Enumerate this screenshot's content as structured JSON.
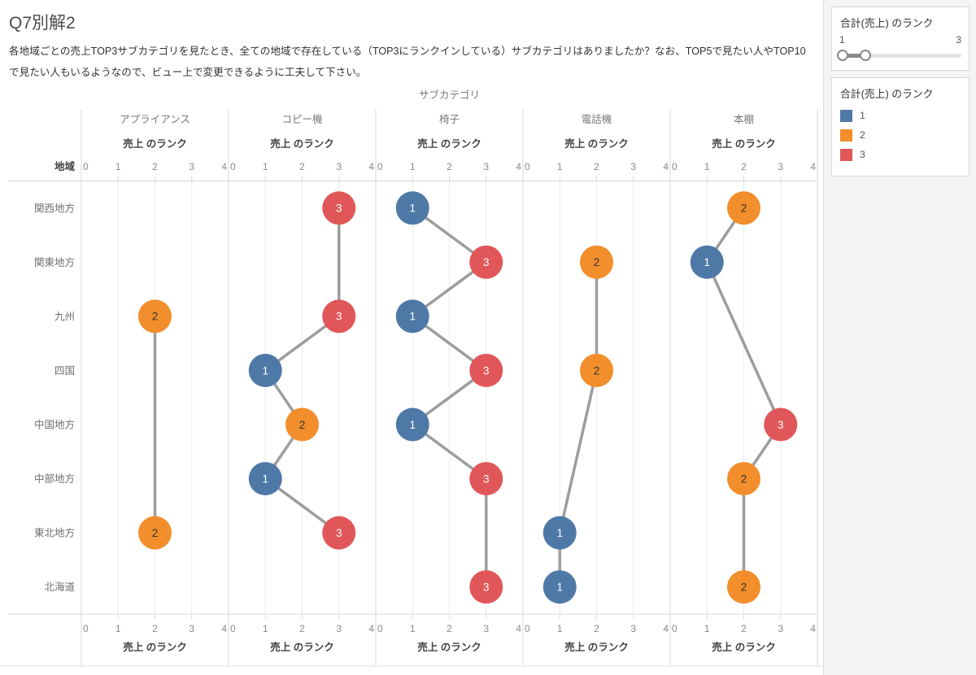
{
  "page": {
    "title": "Q7別解2",
    "description": "各地域ごとの売上TOP3サブカテゴリを見たとき、全ての地域で存在している（TOP3にランクインしている）サブカテゴリはありましたか？なお、TOP5で見たい人やTOP10で見たい人もいるようなので、ビュー上で変更できるように工夫して下さい。"
  },
  "chart_data": {
    "type": "scatter",
    "columns_field": "サブカテゴリ",
    "rows_field": "地域",
    "axis_label": "売上 のランク",
    "axis_ticks": [
      "0",
      "1",
      "2",
      "3",
      "4"
    ],
    "axis_range": [
      0,
      4
    ],
    "grid": "vertical-light",
    "legend_position": "right",
    "columns": [
      "アプライアンス",
      "コピー機",
      "椅子",
      "電話機",
      "本棚"
    ],
    "rows": [
      "関西地方",
      "関東地方",
      "九州",
      "四国",
      "中国地方",
      "中部地方",
      "東北地方",
      "北海道"
    ],
    "rank_styles": {
      "1": {
        "fill": "#4e79a7",
        "text": "#ffffff"
      },
      "2": {
        "fill": "#f28e2b",
        "text": "#333333"
      },
      "3": {
        "fill": "#e15759",
        "text": "#ffffff"
      }
    },
    "series": [
      {
        "column": "アプライアンス",
        "points": [
          {
            "row": "九州",
            "rank": 2
          },
          {
            "row": "東北地方",
            "rank": 2
          }
        ]
      },
      {
        "column": "コピー機",
        "points": [
          {
            "row": "関西地方",
            "rank": 3
          },
          {
            "row": "九州",
            "rank": 3
          },
          {
            "row": "四国",
            "rank": 1
          },
          {
            "row": "中国地方",
            "rank": 2
          },
          {
            "row": "中部地方",
            "rank": 1
          },
          {
            "row": "東北地方",
            "rank": 3
          }
        ]
      },
      {
        "column": "椅子",
        "points": [
          {
            "row": "関西地方",
            "rank": 1
          },
          {
            "row": "関東地方",
            "rank": 3
          },
          {
            "row": "九州",
            "rank": 1
          },
          {
            "row": "四国",
            "rank": 3
          },
          {
            "row": "中国地方",
            "rank": 1
          },
          {
            "row": "中部地方",
            "rank": 3
          },
          {
            "row": "北海道",
            "rank": 3
          }
        ]
      },
      {
        "column": "電話機",
        "points": [
          {
            "row": "関東地方",
            "rank": 2
          },
          {
            "row": "四国",
            "rank": 2
          },
          {
            "row": "東北地方",
            "rank": 1
          },
          {
            "row": "北海道",
            "rank": 1
          }
        ]
      },
      {
        "column": "本棚",
        "points": [
          {
            "row": "関西地方",
            "rank": 2
          },
          {
            "row": "関東地方",
            "rank": 1
          },
          {
            "row": "中国地方",
            "rank": 3
          },
          {
            "row": "中部地方",
            "rank": 2
          },
          {
            "row": "北海道",
            "rank": 2
          }
        ]
      }
    ]
  },
  "sidebar": {
    "filter": {
      "title": "合計(売上) のランク",
      "current_min": "1",
      "current_max": "3"
    },
    "legend": {
      "title": "合計(売上) のランク",
      "items": [
        {
          "label": "1",
          "color": "#4e79a7"
        },
        {
          "label": "2",
          "color": "#f28e2b"
        },
        {
          "label": "3",
          "color": "#e15759"
        }
      ]
    }
  }
}
